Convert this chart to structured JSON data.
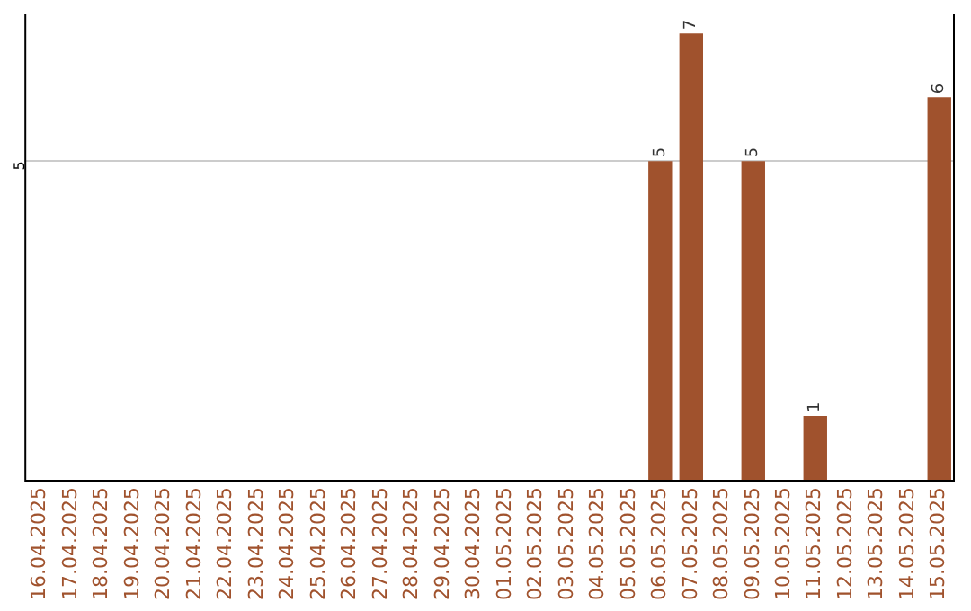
{
  "chart_data": {
    "type": "bar",
    "categories": [
      "16.04.2025",
      "17.04.2025",
      "18.04.2025",
      "19.04.2025",
      "20.04.2025",
      "21.04.2025",
      "22.04.2025",
      "23.04.2025",
      "24.04.2025",
      "25.04.2025",
      "26.04.2025",
      "27.04.2025",
      "28.04.2025",
      "29.04.2025",
      "30.04.2025",
      "01.05.2025",
      "02.05.2025",
      "03.05.2025",
      "04.05.2025",
      "05.05.2025",
      "06.05.2025",
      "07.05.2025",
      "08.05.2025",
      "09.05.2025",
      "10.05.2025",
      "11.05.2025",
      "12.05.2025",
      "13.05.2025",
      "14.05.2025",
      "15.05.2025"
    ],
    "values": [
      null,
      null,
      null,
      null,
      null,
      null,
      null,
      null,
      null,
      null,
      null,
      null,
      null,
      null,
      null,
      null,
      null,
      null,
      null,
      null,
      5,
      7,
      null,
      5,
      null,
      1,
      null,
      null,
      null,
      6
    ],
    "color": "#a0522d",
    "ylim": [
      0,
      7.3
    ],
    "yticks": [
      5
    ],
    "grid": "y",
    "legend": false,
    "data_labels": true
  }
}
